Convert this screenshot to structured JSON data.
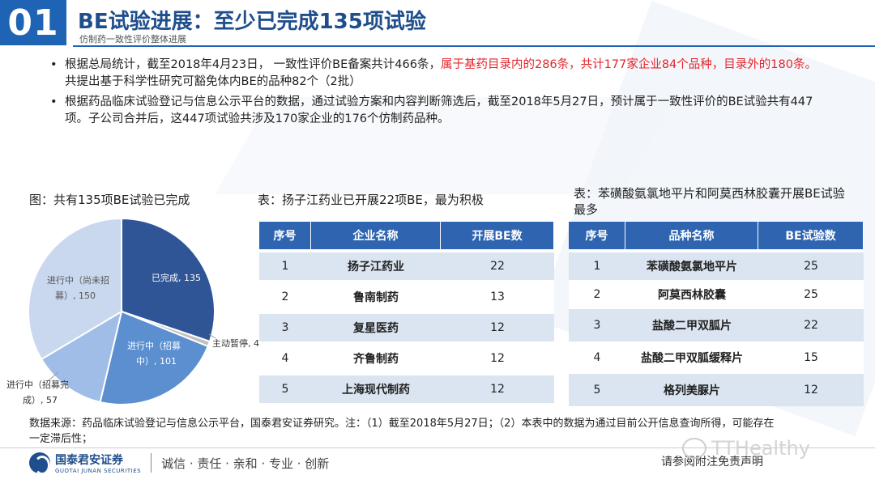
{
  "header": {
    "section_number": "01",
    "title": "BE试验进展：至少已完成135项试验",
    "subtitle": "仿制药一致性评价整体进展"
  },
  "bullets": {
    "b1_part1": "根据总局统计，截至2018年4月23日， 一致性评价BE备案共计466条，",
    "b1_red": "属于基药目录内的286条，共计177家企业84个品种，目录外的180条。",
    "b1_part2": "共提出基于科学性研究可豁免体内BE的品种82个（2批）",
    "b2": "根据药品临床试验登记与信息公示平台的数据，通过试验方案和内容判断筛选后，截至2018年5月27日，预计属于一致性评价的BE试验共有447项。子公司合并后，这447项试验共涉及170家企业的176个仿制药品种。"
  },
  "chart_caption": "图：共有135项BE试验已完成",
  "chart_data": {
    "type": "pie",
    "title": "",
    "slices": [
      {
        "label": "已完成",
        "value": 135,
        "color": "#2f5597",
        "label_text": "已完成, 135"
      },
      {
        "label": "主动暂停",
        "value": 4,
        "color": "#c0c0c0",
        "label_text": "主动暂停, 4"
      },
      {
        "label": "进行中（招募中）",
        "value": 101,
        "color": "#5b8fd0",
        "label_text": "进行中（招募中）, 101"
      },
      {
        "label": "进行中（招募完成）",
        "value": 57,
        "color": "#9fbde6",
        "label_text": "进行中（招募完成）, 57"
      },
      {
        "label": "进行中（尚未招募）",
        "value": 150,
        "color": "#c9d8ee",
        "label_text": "进行中（尚未招募）, 150"
      }
    ]
  },
  "pie_labels": {
    "completed": "已完成, 135",
    "paused": "主动暂停, 4",
    "recruiting_l1": "进行中（招募",
    "recruiting_l2": "中）, 101",
    "recruited_l1": "进行中（招募完",
    "recruited_l2": "成）, 57",
    "notyet_l1": "进行中（尚未招",
    "notyet_l2": "募）, 150"
  },
  "table1": {
    "caption": "表：扬子江药业已开展22项BE，最为积极",
    "headers": [
      "序号",
      "企业名称",
      "开展BE数"
    ],
    "rows": [
      [
        "1",
        "扬子江药业",
        "22"
      ],
      [
        "2",
        "鲁南制药",
        "13"
      ],
      [
        "3",
        "复星医药",
        "12"
      ],
      [
        "4",
        "齐鲁制药",
        "12"
      ],
      [
        "5",
        "上海现代制药",
        "12"
      ]
    ]
  },
  "table2": {
    "caption": "表：苯磺酸氨氯地平片和阿莫西林胶囊开展BE试验最多",
    "headers": [
      "序号",
      "品种名称",
      "BE试验数"
    ],
    "rows": [
      [
        "1",
        "苯磺酸氨氯地平片",
        "25"
      ],
      [
        "2",
        "阿莫西林胶囊",
        "25"
      ],
      [
        "3",
        "盐酸二甲双胍片",
        "22"
      ],
      [
        "4",
        "盐酸二甲双胍缓释片",
        "15"
      ],
      [
        "5",
        "格列美脲片",
        "12"
      ]
    ]
  },
  "source": "数据来源：药品临床试验登记与信息公示平台，国泰君安证券研究。注：（1）截至2018年5月27日；（2）本表中的数据为通过目前公开信息查询所得，可能存在一定滞后性；",
  "footer": {
    "logo_cn": "国泰君安证券",
    "logo_en": "GUOTAI JUNAN SECURITIES",
    "slogan": "诚信 · 责任 · 亲和 · 专业 · 创新",
    "disclaimer": "请参阅附注免责声明",
    "watermark": "TTHealthy"
  }
}
